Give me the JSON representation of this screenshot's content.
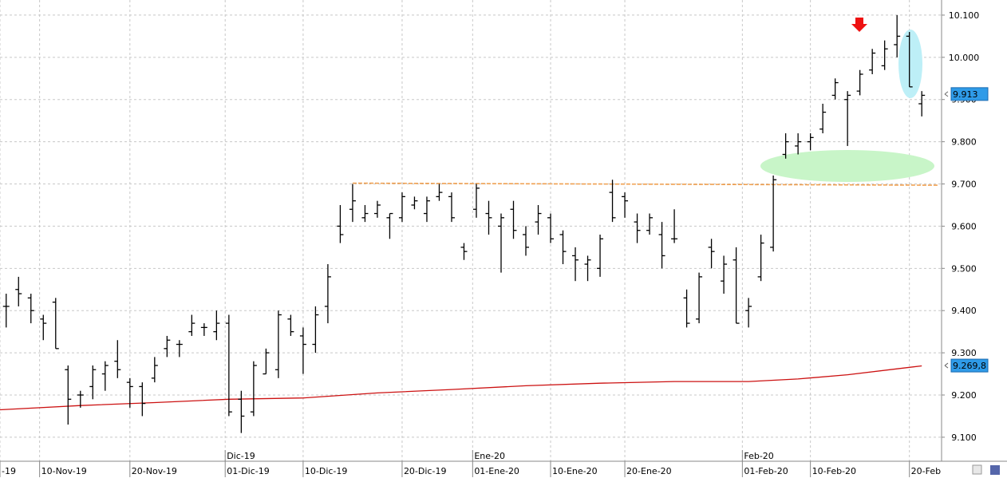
{
  "chart_data": {
    "type": "ohlc",
    "xlim": [
      -0.5,
      75.6
    ],
    "ylim": [
      9.0431,
      10.1358
    ],
    "xticks": [
      {
        "value": -0.5,
        "label": "-19"
      },
      {
        "value": 2.7,
        "label": "10-Nov-19"
      },
      {
        "value": 10,
        "label": "20-Nov-19"
      },
      {
        "value": 17.7,
        "label": "01-Dic-19"
      },
      {
        "value": 24,
        "label": "10-Dic-19"
      },
      {
        "value": 32,
        "label": "20-Dic-19"
      },
      {
        "value": 37.7,
        "label": "01-Ene-20"
      },
      {
        "value": 44,
        "label": "10-Ene-20"
      },
      {
        "value": 50,
        "label": "20-Ene-20"
      },
      {
        "value": 59.5,
        "label": "01-Feb-20"
      },
      {
        "value": 65,
        "label": "10-Feb-20"
      },
      {
        "value": 73,
        "label": "20-Feb"
      }
    ],
    "month_ticks": [
      {
        "value": 17.7,
        "label": "Dic-19"
      },
      {
        "value": 37.7,
        "label": "Ene-20"
      },
      {
        "value": 59.5,
        "label": "Feb-20"
      }
    ],
    "yticks": [
      {
        "value": 9.1,
        "label": "9.100"
      },
      {
        "value": 9.2,
        "label": "9.200"
      },
      {
        "value": 9.3,
        "label": "9.300"
      },
      {
        "value": 9.4,
        "label": "9.400"
      },
      {
        "value": 9.5,
        "label": "9.500"
      },
      {
        "value": 9.6,
        "label": "9.600"
      },
      {
        "value": 9.7,
        "label": "9.700"
      },
      {
        "value": 9.8,
        "label": "9.800"
      },
      {
        "value": 9.9,
        "label": "9.900"
      },
      {
        "value": 10.0,
        "label": "10.000"
      },
      {
        "value": 10.1,
        "label": "10.100"
      }
    ],
    "grid": true,
    "color": "#000000",
    "open": [
      9.41,
      9.45,
      9.43,
      9.38,
      9.42,
      9.26,
      9.2,
      9.22,
      9.25,
      9.28,
      9.23,
      9.22,
      9.24,
      9.31,
      9.32,
      9.35,
      9.36,
      9.35,
      9.37,
      9.19,
      9.16,
      9.25,
      9.26,
      9.38,
      9.34,
      9.32,
      9.41,
      9.6,
      9.64,
      9.62,
      9.63,
      9.62,
      9.62,
      9.65,
      9.63,
      9.67,
      9.67,
      9.55,
      9.64,
      9.63,
      9.6,
      9.64,
      9.58,
      9.61,
      9.62,
      9.58,
      9.53,
      9.51,
      9.5,
      9.68,
      9.67,
      9.61,
      9.59,
      9.58,
      9.57,
      9.43,
      9.38,
      9.55,
      9.47,
      9.52,
      9.4,
      9.48,
      9.55,
      9.77,
      9.79,
      9.8,
      9.83,
      9.91,
      9.9,
      9.92,
      9.97,
      9.98,
      10.03,
      10.05,
      9.89
    ],
    "high": [
      9.44,
      9.48,
      9.44,
      9.39,
      9.43,
      9.27,
      9.21,
      9.27,
      9.28,
      9.33,
      9.24,
      9.23,
      9.29,
      9.34,
      9.33,
      9.39,
      9.37,
      9.4,
      9.39,
      9.21,
      9.28,
      9.31,
      9.4,
      9.39,
      9.36,
      9.41,
      9.51,
      9.65,
      9.7,
      9.65,
      9.66,
      9.63,
      9.68,
      9.67,
      9.67,
      9.7,
      9.68,
      9.56,
      9.7,
      9.66,
      9.63,
      9.66,
      9.6,
      9.65,
      9.63,
      9.59,
      9.55,
      9.53,
      9.58,
      9.71,
      9.68,
      9.63,
      9.63,
      9.61,
      9.64,
      9.45,
      9.49,
      9.57,
      9.53,
      9.55,
      9.43,
      9.58,
      9.72,
      9.82,
      9.82,
      9.82,
      9.89,
      9.95,
      9.92,
      9.97,
      10.02,
      10.04,
      10.1,
      10.06,
      9.92
    ],
    "low": [
      9.36,
      9.41,
      9.37,
      9.33,
      9.31,
      9.13,
      9.17,
      9.19,
      9.21,
      9.24,
      9.17,
      9.15,
      9.23,
      9.29,
      9.29,
      9.34,
      9.34,
      9.33,
      9.15,
      9.11,
      9.15,
      9.25,
      9.24,
      9.34,
      9.25,
      9.3,
      9.37,
      9.56,
      9.61,
      9.61,
      9.62,
      9.57,
      9.61,
      9.64,
      9.61,
      9.66,
      9.61,
      9.52,
      9.62,
      9.58,
      9.49,
      9.57,
      9.53,
      9.58,
      9.56,
      9.51,
      9.47,
      9.47,
      9.48,
      9.61,
      9.62,
      9.56,
      9.58,
      9.5,
      9.56,
      9.36,
      9.37,
      9.5,
      9.44,
      9.37,
      9.36,
      9.47,
      9.54,
      9.76,
      9.77,
      9.78,
      9.82,
      9.9,
      9.79,
      9.91,
      9.96,
      9.97,
      10.0,
      9.93,
      9.86
    ],
    "close": [
      9.41,
      9.44,
      9.4,
      9.37,
      9.31,
      9.19,
      9.2,
      9.26,
      9.27,
      9.26,
      9.22,
      9.18,
      9.27,
      9.33,
      9.32,
      9.37,
      9.36,
      9.37,
      9.16,
      9.15,
      9.27,
      9.3,
      9.39,
      9.35,
      9.32,
      9.39,
      9.48,
      9.58,
      9.66,
      9.63,
      9.65,
      9.63,
      9.67,
      9.66,
      9.66,
      9.68,
      9.62,
      9.54,
      9.69,
      9.62,
      9.62,
      9.59,
      9.55,
      9.63,
      9.57,
      9.54,
      9.52,
      9.52,
      9.57,
      9.62,
      9.66,
      9.59,
      9.62,
      9.53,
      9.57,
      9.37,
      9.48,
      9.54,
      9.51,
      9.37,
      9.41,
      9.56,
      9.71,
      9.8,
      9.8,
      9.81,
      9.87,
      9.94,
      9.91,
      9.96,
      10.01,
      10.02,
      10.05,
      9.93,
      9.91
    ],
    "moving_average": {
      "color": "#cc1111",
      "x": [
        -0.5,
        6,
        12,
        18,
        24,
        30,
        36,
        42,
        48,
        54,
        60,
        64,
        68,
        72,
        74
      ],
      "values": [
        9.165,
        9.175,
        9.182,
        9.19,
        9.193,
        9.205,
        9.213,
        9.222,
        9.228,
        9.232,
        9.232,
        9.238,
        9.248,
        9.262,
        9.269
      ]
    },
    "level_line": {
      "color": "#f0a050",
      "x": [
        28,
        75.3
      ],
      "values": [
        9.702,
        9.697
      ]
    },
    "price_labels": [
      {
        "value": 9.913,
        "label": "9.913"
      },
      {
        "value": 9.2698,
        "label": "9.269,8"
      }
    ]
  }
}
